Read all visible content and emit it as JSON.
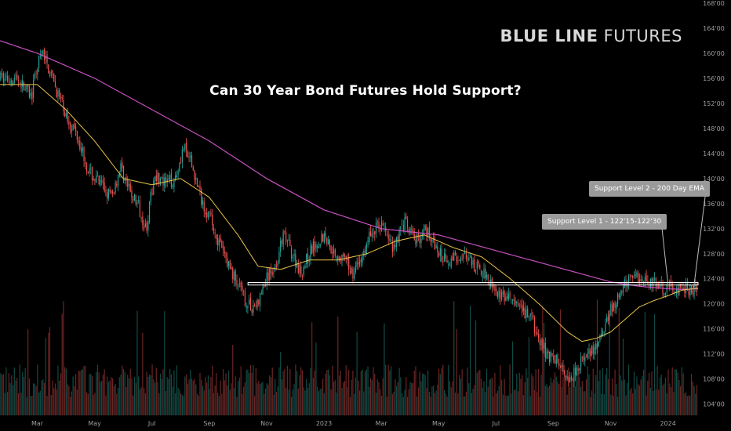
{
  "brand": {
    "part1": "BLUE LINE",
    "part2": " FUTURES"
  },
  "chart_data": {
    "type": "candlestick",
    "title": "Can 30 Year Bond Futures Hold Support?",
    "y_ticks": [
      "104'00",
      "108'00",
      "112'00",
      "116'00",
      "120'00",
      "124'00",
      "128'00",
      "132'00",
      "136'00",
      "140'00",
      "144'00",
      "148'00",
      "152'00",
      "156'00",
      "160'00",
      "164'00",
      "168'00"
    ],
    "y_tick_values": [
      104,
      108,
      112,
      116,
      120,
      124,
      128,
      132,
      136,
      140,
      144,
      148,
      152,
      156,
      160,
      164,
      168
    ],
    "ylim": [
      102.2,
      168.5
    ],
    "x_ticks": [
      "Mar",
      "May",
      "Jul",
      "Sep",
      "Nov",
      "2023",
      "Mar",
      "May",
      "Jul",
      "Sep",
      "Nov",
      "2024"
    ],
    "x_tick_months": [
      2,
      4,
      6,
      8,
      10,
      12,
      14,
      16,
      18,
      20,
      22,
      24
    ],
    "x_start_month": 0.7,
    "x_end_month": 25.05,
    "price_anchors": [
      [
        0.7,
        156
      ],
      [
        1.3,
        156
      ],
      [
        1.8,
        153
      ],
      [
        2.0,
        158
      ],
      [
        2.2,
        160
      ],
      [
        2.6,
        155
      ],
      [
        3.0,
        150
      ],
      [
        3.4,
        147
      ],
      [
        3.8,
        141
      ],
      [
        4.2,
        139
      ],
      [
        4.6,
        137
      ],
      [
        4.9,
        142
      ],
      [
        5.2,
        138
      ],
      [
        5.5,
        136
      ],
      [
        5.8,
        132
      ],
      [
        6.1,
        141
      ],
      [
        6.4,
        139
      ],
      [
        6.8,
        140
      ],
      [
        7.1,
        145
      ],
      [
        7.4,
        142
      ],
      [
        7.7,
        137
      ],
      [
        8.0,
        134
      ],
      [
        8.4,
        129
      ],
      [
        8.8,
        125
      ],
      [
        9.2,
        121
      ],
      [
        9.4,
        119.5
      ],
      [
        9.7,
        120
      ],
      [
        10.0,
        124
      ],
      [
        10.3,
        126
      ],
      [
        10.6,
        131
      ],
      [
        10.9,
        128
      ],
      [
        11.2,
        125
      ],
      [
        11.6,
        129
      ],
      [
        12.0,
        131
      ],
      [
        12.4,
        128
      ],
      [
        12.7,
        127
      ],
      [
        13.0,
        125
      ],
      [
        13.3,
        127
      ],
      [
        13.6,
        131
      ],
      [
        14.0,
        133
      ],
      [
        14.4,
        129
      ],
      [
        14.8,
        133
      ],
      [
        15.2,
        130
      ],
      [
        15.6,
        132
      ],
      [
        16.0,
        128
      ],
      [
        16.4,
        127
      ],
      [
        16.8,
        128
      ],
      [
        17.2,
        126
      ],
      [
        17.6,
        125
      ],
      [
        17.9,
        123
      ],
      [
        18.2,
        121
      ],
      [
        18.5,
        121
      ],
      [
        18.8,
        119
      ],
      [
        19.2,
        118
      ],
      [
        19.5,
        114
      ],
      [
        19.8,
        112
      ],
      [
        20.1,
        111
      ],
      [
        20.4,
        109
      ],
      [
        20.6,
        108
      ],
      [
        20.8,
        110
      ],
      [
        21.0,
        111
      ],
      [
        21.3,
        112
      ],
      [
        21.6,
        113.5
      ],
      [
        21.8,
        117
      ],
      [
        22.0,
        119
      ],
      [
        22.3,
        121
      ],
      [
        22.6,
        124
      ],
      [
        22.8,
        125
      ],
      [
        23.0,
        124
      ],
      [
        23.3,
        124
      ],
      [
        23.7,
        122.5
      ],
      [
        24.0,
        122.5
      ],
      [
        24.3,
        122.5
      ],
      [
        24.7,
        122.3
      ],
      [
        25.05,
        122.2
      ]
    ],
    "ema50_anchors": [
      [
        0.7,
        155
      ],
      [
        2.0,
        155
      ],
      [
        3.0,
        151
      ],
      [
        4.0,
        146
      ],
      [
        5.0,
        140
      ],
      [
        6.0,
        139
      ],
      [
        7.0,
        140
      ],
      [
        8.0,
        137
      ],
      [
        9.0,
        131
      ],
      [
        9.7,
        126
      ],
      [
        10.5,
        125.5
      ],
      [
        11.5,
        127
      ],
      [
        12.5,
        127
      ],
      [
        13.5,
        128
      ],
      [
        14.5,
        130
      ],
      [
        15.5,
        131
      ],
      [
        16.5,
        129
      ],
      [
        17.5,
        127.5
      ],
      [
        18.5,
        124
      ],
      [
        19.5,
        120
      ],
      [
        20.5,
        115.5
      ],
      [
        21.0,
        114
      ],
      [
        21.5,
        114.5
      ],
      [
        22.0,
        115.5
      ],
      [
        22.5,
        117.5
      ],
      [
        23.0,
        119.5
      ],
      [
        23.5,
        120.5
      ],
      [
        24.0,
        121.3
      ],
      [
        24.5,
        122.2
      ],
      [
        25.05,
        122.5
      ]
    ],
    "ema200_anchors": [
      [
        0.7,
        162
      ],
      [
        2.0,
        160
      ],
      [
        4.0,
        156
      ],
      [
        6.0,
        151
      ],
      [
        8.0,
        146
      ],
      [
        10.0,
        140
      ],
      [
        12.0,
        135
      ],
      [
        14.0,
        132
      ],
      [
        16.0,
        131
      ],
      [
        18.0,
        128.5
      ],
      [
        20.0,
        126
      ],
      [
        22.0,
        123.5
      ],
      [
        23.0,
        122.8
      ],
      [
        24.0,
        122.4
      ],
      [
        24.5,
        122.3
      ],
      [
        25.05,
        122.4
      ]
    ],
    "support_level": 123.2,
    "support_band": [
      "122'15",
      "122'30"
    ],
    "volume_ylim": [
      0,
      100
    ],
    "colors": {
      "up": "#26a69a",
      "down": "#ef5350",
      "ema50": "#e7c24a",
      "ema200": "#c850c0",
      "support": "#ffffff",
      "axis_text": "#9e9e9e"
    },
    "annotations": [
      {
        "text": "Support Level 1 - 122'15-122'30",
        "anchor_month": 24.0,
        "anchor_price": 123.2
      },
      {
        "text": "Support Level 2 - 200 Day EMA",
        "anchor_month": 24.9,
        "anchor_price": 122.6
      }
    ]
  }
}
